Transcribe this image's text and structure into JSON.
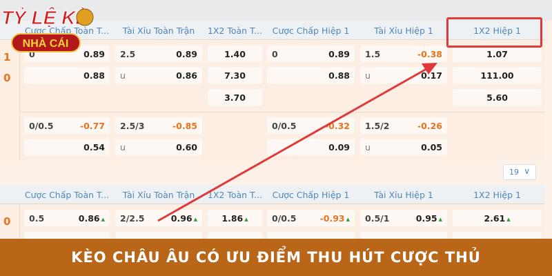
{
  "logo": {
    "text_top": "TỶ LỆ KÈO",
    "text_bottom": "NHÀ CÁI"
  },
  "headers": [
    "Cược Chấp Toàn T...",
    "Tài Xỉu Toàn Trận",
    "1X2 Toàn T...",
    "Cược Chấp Hiệp 1",
    "Tài Xỉu Hiệp 1",
    "1X2 Hiệp 1"
  ],
  "match1": {
    "score": [
      "1",
      "0"
    ],
    "rows": [
      [
        {
          "l": "0",
          "r": "0.89"
        },
        {
          "l": "2.5",
          "r": "0.89"
        },
        {
          "c": "1.40"
        },
        {
          "l": "0",
          "r": "0.89"
        },
        {
          "l": "1.5",
          "r": "-0.38",
          "neg": true
        },
        {
          "c": "1.07"
        }
      ],
      [
        {
          "l": "",
          "r": "0.88"
        },
        {
          "l": "u",
          "r": "0.86"
        },
        {
          "c": "7.30"
        },
        {
          "l": "",
          "r": "0.88"
        },
        {
          "l": "u",
          "r": "0.17"
        },
        {
          "c": "111.00"
        }
      ],
      [
        null,
        null,
        {
          "c": "3.70"
        },
        null,
        null,
        {
          "c": "5.60"
        }
      ],
      [
        {
          "l": "0/0.5",
          "r": "-0.77",
          "neg": true
        },
        {
          "l": "2.5/3",
          "r": "-0.85",
          "neg": true
        },
        null,
        {
          "l": "0/0.5",
          "r": "-0.32",
          "neg": true
        },
        {
          "l": "1.5/2",
          "r": "-0.26",
          "neg": true
        },
        null
      ],
      [
        {
          "l": "",
          "r": "0.54"
        },
        {
          "l": "u",
          "r": "0.60"
        },
        null,
        {
          "l": "",
          "r": "0.09"
        },
        {
          "l": "u",
          "r": "0.05"
        },
        null
      ]
    ]
  },
  "pager": {
    "value": "19"
  },
  "match2": {
    "score": [
      "0"
    ],
    "rows": [
      [
        {
          "l": "0.5",
          "r": "0.86",
          "up": true
        },
        {
          "l": "2/2.5",
          "r": "0.96",
          "up": true
        },
        {
          "c": "1.86",
          "up": true
        },
        {
          "l": "0/0.5",
          "r": "-0.93",
          "neg": true,
          "up": true
        },
        {
          "l": "0.5/1",
          "r": "0.95",
          "up": true
        },
        {
          "c": "2.61",
          "up": true
        }
      ]
    ]
  },
  "banner": {
    "text": "KÈO CHÂU ÂU CÓ ƯU ĐIỂM THU HÚT CƯỢC THỦ"
  },
  "colors": {
    "accent": "#e8731f",
    "banner": "#b96618",
    "highlight": "#e0393c",
    "header_text": "#4f86b8"
  }
}
